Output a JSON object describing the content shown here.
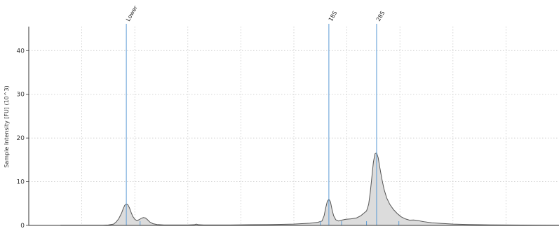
{
  "colors": {
    "trace_fill": "#dcdcdc",
    "trace_line": "#555555",
    "marker": "#5b9bd5",
    "grid": "#c8c8c8",
    "axis": "#333333"
  },
  "chart_data": {
    "type": "area",
    "title": "",
    "xlabel": "",
    "ylabel": "Sample Intensity [FU] (10^3)",
    "x_unit": "index",
    "xlim": [
      0,
      1000
    ],
    "ylim": [
      0,
      45.5
    ],
    "yticks": [
      0,
      10,
      20,
      30,
      40
    ],
    "grid": true,
    "legend": "none",
    "series": [
      {
        "points": [
          [
            60,
            0.05
          ],
          [
            100,
            0.05
          ],
          [
            140,
            0.05
          ],
          [
            150,
            0.1
          ],
          [
            160,
            0.3
          ],
          [
            165,
            0.8
          ],
          [
            170,
            1.6
          ],
          [
            175,
            2.8
          ],
          [
            178,
            3.8
          ],
          [
            181,
            4.6
          ],
          [
            184,
            4.9
          ],
          [
            187,
            4.7
          ],
          [
            190,
            4.0
          ],
          [
            193,
            3.0
          ],
          [
            196,
            2.1
          ],
          [
            200,
            1.4
          ],
          [
            204,
            1.1
          ],
          [
            208,
            1.3
          ],
          [
            212,
            1.6
          ],
          [
            216,
            1.8
          ],
          [
            220,
            1.7
          ],
          [
            224,
            1.3
          ],
          [
            228,
            0.8
          ],
          [
            234,
            0.4
          ],
          [
            242,
            0.2
          ],
          [
            255,
            0.1
          ],
          [
            300,
            0.1
          ],
          [
            312,
            0.15
          ],
          [
            316,
            0.3
          ],
          [
            320,
            0.15
          ],
          [
            330,
            0.1
          ],
          [
            380,
            0.1
          ],
          [
            420,
            0.15
          ],
          [
            460,
            0.2
          ],
          [
            500,
            0.3
          ],
          [
            530,
            0.5
          ],
          [
            545,
            0.7
          ],
          [
            553,
            1.0
          ],
          [
            557,
            2.2
          ],
          [
            560,
            4.0
          ],
          [
            563,
            5.5
          ],
          [
            566,
            6.0
          ],
          [
            569,
            5.4
          ],
          [
            572,
            3.6
          ],
          [
            575,
            2.2
          ],
          [
            579,
            1.3
          ],
          [
            584,
            1.0
          ],
          [
            590,
            1.2
          ],
          [
            598,
            1.4
          ],
          [
            608,
            1.5
          ],
          [
            618,
            1.7
          ],
          [
            626,
            2.2
          ],
          [
            632,
            2.8
          ],
          [
            637,
            3.3
          ],
          [
            641,
            4.8
          ],
          [
            644,
            7.5
          ],
          [
            647,
            11.0
          ],
          [
            650,
            14.5
          ],
          [
            653,
            16.4
          ],
          [
            656,
            16.6
          ],
          [
            659,
            15.5
          ],
          [
            662,
            13.3
          ],
          [
            666,
            10.6
          ],
          [
            670,
            8.3
          ],
          [
            675,
            6.3
          ],
          [
            681,
            4.8
          ],
          [
            688,
            3.6
          ],
          [
            695,
            2.7
          ],
          [
            702,
            2.0
          ],
          [
            710,
            1.5
          ],
          [
            718,
            1.2
          ],
          [
            726,
            1.25
          ],
          [
            734,
            1.1
          ],
          [
            745,
            0.85
          ],
          [
            760,
            0.6
          ],
          [
            780,
            0.45
          ],
          [
            800,
            0.3
          ],
          [
            830,
            0.2
          ],
          [
            870,
            0.12
          ],
          [
            930,
            0.08
          ],
          [
            1000,
            0.05
          ]
        ]
      }
    ],
    "markers": [
      {
        "label": "Lower",
        "x": 184
      },
      {
        "label": "18S",
        "x": 566
      },
      {
        "label": "28S",
        "x": 656
      }
    ],
    "fragment_ticks": [
      210,
      550,
      590,
      637,
      698
    ]
  }
}
